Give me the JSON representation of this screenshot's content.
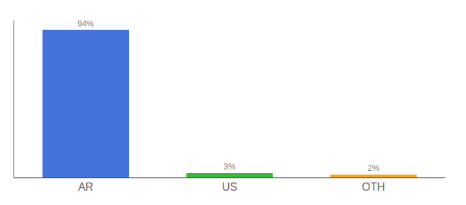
{
  "chart_data": {
    "type": "bar",
    "categories": [
      "AR",
      "US",
      "OTH"
    ],
    "values": [
      94,
      3,
      2
    ],
    "value_labels": [
      "94%",
      "3%",
      "2%"
    ],
    "colors": [
      "#4472db",
      "#3bb83b",
      "#f5a623"
    ],
    "ylim": [
      0,
      100
    ],
    "data_labels": true,
    "tick_labels": "x"
  }
}
